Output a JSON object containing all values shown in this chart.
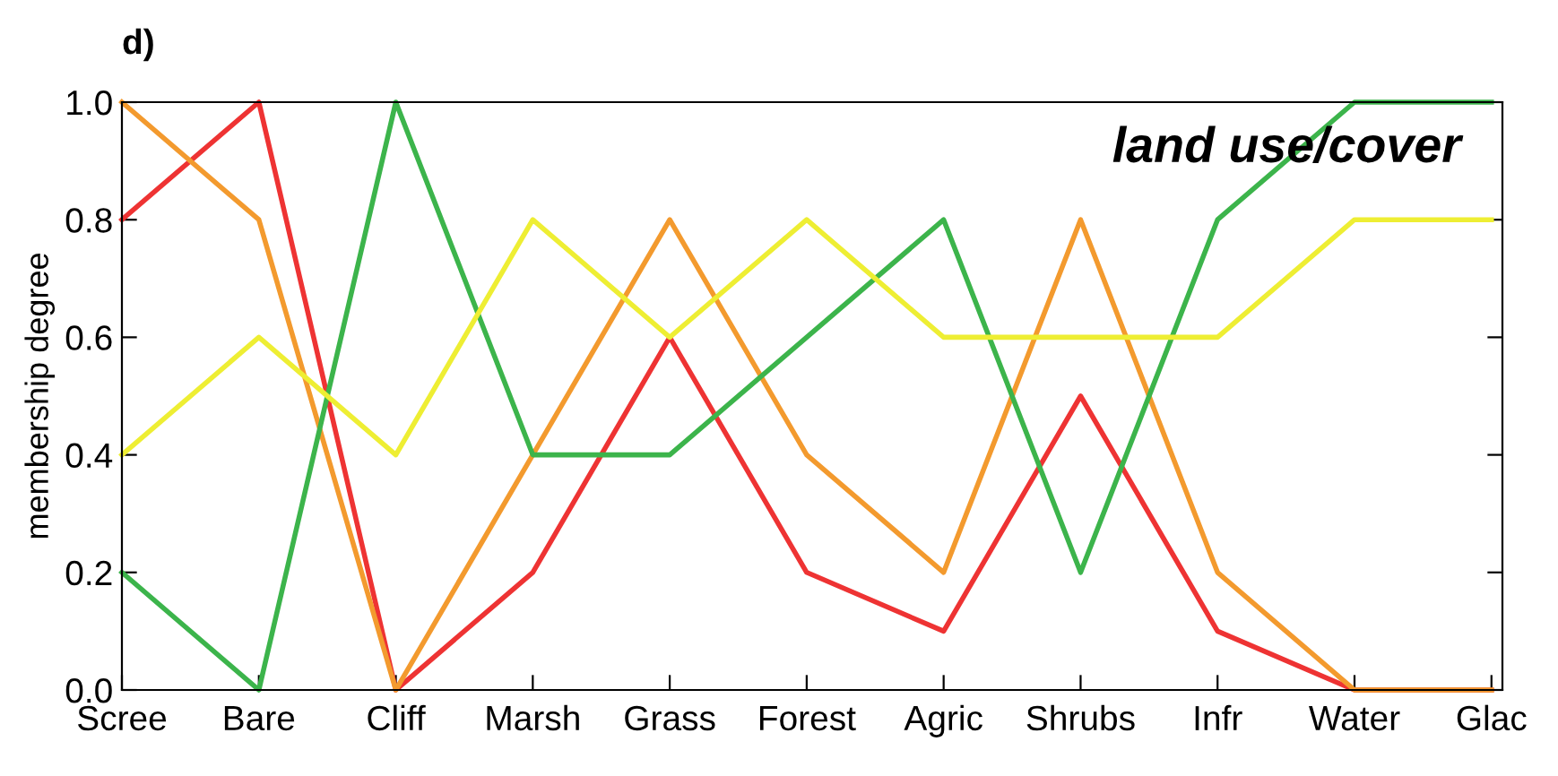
{
  "chart_data": {
    "type": "line",
    "title": "d)",
    "ylabel": "membership degree",
    "annotations": [
      "land use/cover"
    ],
    "categories": [
      "Scree",
      "Bare",
      "Cliff",
      "Marsh",
      "Grass",
      "Forest",
      "Agric",
      "Shrubs",
      "Infr",
      "Water",
      "Glac"
    ],
    "series": [
      {
        "color": "#ee3333",
        "values": [
          0.8,
          1.0,
          0,
          0.2,
          0.6,
          0.2,
          0.1,
          0.5,
          0.1,
          0,
          0
        ]
      },
      {
        "color": "#f39a2e",
        "values": [
          1.0,
          0.8,
          0,
          0.4,
          0.8,
          0.4,
          0.2,
          0.8,
          0.2,
          0,
          0
        ]
      },
      {
        "color": "#3cb44b",
        "values": [
          0.2,
          0,
          1.0,
          0.4,
          0.4,
          0.6,
          0.8,
          0.2,
          0.8,
          1.0,
          1.0
        ]
      },
      {
        "color": "#eeee33",
        "values": [
          0.4,
          0.6,
          0.4,
          0.8,
          0.6,
          0.8,
          0.6,
          0.6,
          0.6,
          0.8,
          0.8
        ]
      }
    ],
    "ylim": [
      0,
      1.0
    ],
    "yticks": [
      {
        "value": 0,
        "label": "0.0"
      },
      {
        "value": 0.2,
        "label": "0.2"
      },
      {
        "value": 0.4,
        "label": "0.4"
      },
      {
        "value": 0.6,
        "label": "0.6"
      },
      {
        "value": 0.8,
        "label": "0.8"
      },
      {
        "value": 1.0,
        "label": "1.0"
      }
    ],
    "grid": false,
    "legend": false,
    "marker": "none",
    "line_style": "solid"
  }
}
